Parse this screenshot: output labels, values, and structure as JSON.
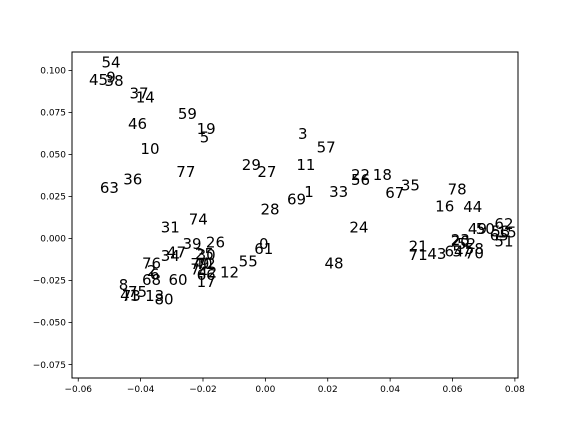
{
  "chart_data": {
    "type": "scatter",
    "title": "",
    "xlabel": "",
    "ylabel": "",
    "xlim": [
      -0.062,
      0.081
    ],
    "ylim": [
      -0.083,
      0.111
    ],
    "xticks": [
      -0.06,
      -0.04,
      -0.02,
      0.0,
      0.02,
      0.04,
      0.06,
      0.08
    ],
    "xtick_labels": [
      "−0.06",
      "−0.04",
      "−0.02",
      "0.00",
      "0.02",
      "0.04",
      "0.06",
      "0.08"
    ],
    "yticks": [
      -0.075,
      -0.05,
      -0.025,
      0.0,
      0.025,
      0.05,
      0.075,
      0.1
    ],
    "ytick_labels": [
      "−0.075",
      "−0.050",
      "−0.025",
      "0.000",
      "0.025",
      "0.050",
      "0.075",
      "0.100"
    ],
    "grid": false,
    "legend": "none",
    "points": [
      {
        "label": "54",
        "x": -0.0495,
        "y": 0.1047
      },
      {
        "label": "45",
        "x": -0.0535,
        "y": 0.0942
      },
      {
        "label": "9",
        "x": -0.0495,
        "y": 0.0957
      },
      {
        "label": "38",
        "x": -0.0485,
        "y": 0.0937
      },
      {
        "label": "37",
        "x": -0.0405,
        "y": 0.0862
      },
      {
        "label": "14",
        "x": -0.0385,
        "y": 0.0838
      },
      {
        "label": "46",
        "x": -0.041,
        "y": 0.0682
      },
      {
        "label": "59",
        "x": -0.025,
        "y": 0.0742
      },
      {
        "label": "19",
        "x": -0.019,
        "y": 0.0652
      },
      {
        "label": "5",
        "x": -0.0195,
        "y": 0.0602
      },
      {
        "label": "10",
        "x": -0.037,
        "y": 0.0532
      },
      {
        "label": "3",
        "x": 0.012,
        "y": 0.0622
      },
      {
        "label": "57",
        "x": 0.0195,
        "y": 0.0542
      },
      {
        "label": "29",
        "x": -0.0045,
        "y": 0.0437
      },
      {
        "label": "11",
        "x": 0.013,
        "y": 0.0437
      },
      {
        "label": "27",
        "x": 0.0005,
        "y": 0.0397
      },
      {
        "label": "77",
        "x": -0.0255,
        "y": 0.0397
      },
      {
        "label": "36",
        "x": -0.0425,
        "y": 0.0352
      },
      {
        "label": "63",
        "x": -0.05,
        "y": 0.0302
      },
      {
        "label": "22",
        "x": 0.0305,
        "y": 0.0377
      },
      {
        "label": "56",
        "x": 0.0305,
        "y": 0.0347
      },
      {
        "label": "18",
        "x": 0.0375,
        "y": 0.0377
      },
      {
        "label": "35",
        "x": 0.0465,
        "y": 0.0317
      },
      {
        "label": "78",
        "x": 0.0615,
        "y": 0.0292
      },
      {
        "label": "1",
        "x": 0.014,
        "y": 0.0277
      },
      {
        "label": "33",
        "x": 0.0235,
        "y": 0.0277
      },
      {
        "label": "67",
        "x": 0.0415,
        "y": 0.0272
      },
      {
        "label": "69",
        "x": 0.01,
        "y": 0.0232
      },
      {
        "label": "16",
        "x": 0.0575,
        "y": 0.0192
      },
      {
        "label": "44",
        "x": 0.0665,
        "y": 0.0187
      },
      {
        "label": "28",
        "x": 0.0015,
        "y": 0.0172
      },
      {
        "label": "74",
        "x": -0.0215,
        "y": 0.0112
      },
      {
        "label": "31",
        "x": -0.0305,
        "y": 0.0067
      },
      {
        "label": "24",
        "x": 0.03,
        "y": 0.0067
      },
      {
        "label": "62",
        "x": 0.0765,
        "y": 0.0087
      },
      {
        "label": "50",
        "x": 0.0705,
        "y": 0.0057
      },
      {
        "label": "49",
        "x": 0.068,
        "y": 0.0057
      },
      {
        "label": "53",
        "x": 0.0755,
        "y": 0.0042
      },
      {
        "label": "15",
        "x": 0.0775,
        "y": 0.0037
      },
      {
        "label": "65",
        "x": 0.075,
        "y": 0.0017
      },
      {
        "label": "23",
        "x": 0.0625,
        "y": -0.0008
      },
      {
        "label": "20",
        "x": 0.0625,
        "y": -0.0018
      },
      {
        "label": "51",
        "x": 0.0765,
        "y": -0.0018
      },
      {
        "label": "52",
        "x": 0.0645,
        "y": -0.0033
      },
      {
        "label": "26",
        "x": -0.016,
        "y": -0.0023
      },
      {
        "label": "39",
        "x": -0.0235,
        "y": -0.0033
      },
      {
        "label": "0",
        "x": -0.0005,
        "y": -0.0033
      },
      {
        "label": "21",
        "x": 0.049,
        "y": -0.0048
      },
      {
        "label": "61",
        "x": -0.0005,
        "y": -0.0063
      },
      {
        "label": "58",
        "x": 0.067,
        "y": -0.0063
      },
      {
        "label": "64",
        "x": 0.0605,
        "y": -0.0078
      },
      {
        "label": "57",
        "x": 0.063,
        "y": -0.0078
      },
      {
        "label": "70",
        "x": 0.067,
        "y": -0.0088
      },
      {
        "label": "47",
        "x": -0.0285,
        "y": -0.0083
      },
      {
        "label": "25",
        "x": -0.0195,
        "y": -0.0093
      },
      {
        "label": "30",
        "x": -0.019,
        "y": -0.0098
      },
      {
        "label": "34",
        "x": -0.0305,
        "y": -0.0103
      },
      {
        "label": "43",
        "x": 0.055,
        "y": -0.0093
      },
      {
        "label": "71",
        "x": 0.049,
        "y": -0.0098
      },
      {
        "label": "55",
        "x": -0.0055,
        "y": -0.0138
      },
      {
        "label": "48",
        "x": 0.022,
        "y": -0.0148
      },
      {
        "label": "76",
        "x": -0.0365,
        "y": -0.0148
      },
      {
        "label": "79",
        "x": -0.021,
        "y": -0.0153
      },
      {
        "label": "40",
        "x": -0.02,
        "y": -0.0153
      },
      {
        "label": "72",
        "x": -0.019,
        "y": -0.0153
      },
      {
        "label": "2",
        "x": -0.0365,
        "y": -0.0193
      },
      {
        "label": "7",
        "x": -0.0225,
        "y": -0.0183
      },
      {
        "label": "6",
        "x": -0.0355,
        "y": -0.0213
      },
      {
        "label": "42",
        "x": -0.0185,
        "y": -0.0203
      },
      {
        "label": "12",
        "x": -0.0115,
        "y": -0.0203
      },
      {
        "label": "66",
        "x": -0.019,
        "y": -0.0218
      },
      {
        "label": "68",
        "x": -0.0365,
        "y": -0.0248
      },
      {
        "label": "60",
        "x": -0.028,
        "y": -0.0248
      },
      {
        "label": "17",
        "x": -0.019,
        "y": -0.0258
      },
      {
        "label": "8",
        "x": -0.0455,
        "y": -0.0278
      },
      {
        "label": "75",
        "x": -0.041,
        "y": -0.0318
      },
      {
        "label": "41",
        "x": -0.0435,
        "y": -0.0338
      },
      {
        "label": "73",
        "x": -0.043,
        "y": -0.0343
      },
      {
        "label": "13",
        "x": -0.0355,
        "y": -0.0343
      },
      {
        "label": "80",
        "x": -0.0325,
        "y": -0.0363
      }
    ]
  }
}
